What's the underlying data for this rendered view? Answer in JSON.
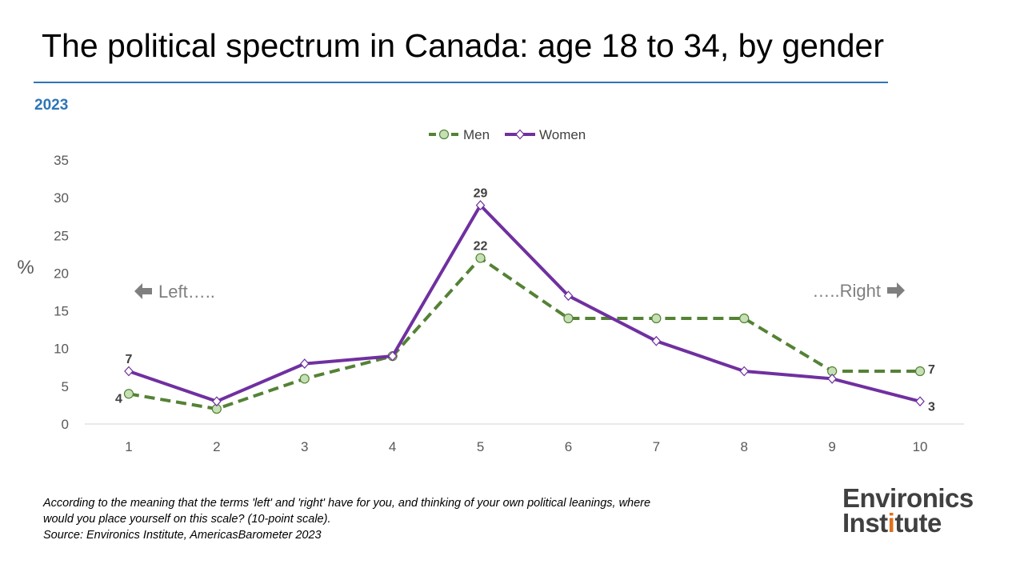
{
  "title": "The political spectrum in Canada: age 18 to 34, by gender",
  "subtitle": "2023",
  "chart_data": {
    "type": "line",
    "x": [
      1,
      2,
      3,
      4,
      5,
      6,
      7,
      8,
      9,
      10
    ],
    "series": [
      {
        "name": "Men",
        "values": [
          4,
          2,
          6,
          9,
          22,
          14,
          14,
          14,
          7,
          7
        ],
        "color": "#548235",
        "marker_fill": "#c5e0b4",
        "dash": true
      },
      {
        "name": "Women",
        "values": [
          7,
          3,
          8,
          9,
          29,
          17,
          11,
          7,
          6,
          3
        ],
        "color": "#7030a0",
        "marker_fill": "#ffffff",
        "dash": false
      }
    ],
    "data_labels": [
      {
        "series": "Women",
        "x": 1,
        "text": "7"
      },
      {
        "series": "Men",
        "x": 1,
        "text": "4"
      },
      {
        "series": "Women",
        "x": 5,
        "text": "29"
      },
      {
        "series": "Men",
        "x": 5,
        "text": "22"
      },
      {
        "series": "Men",
        "x": 10,
        "text": "7"
      },
      {
        "series": "Women",
        "x": 10,
        "text": "3"
      }
    ],
    "ylabel": "%",
    "ylim": [
      0,
      35
    ],
    "yticks": [
      0,
      5,
      10,
      15,
      20,
      25,
      30,
      35
    ],
    "grid": false,
    "legend": "top-center",
    "annotations": {
      "left": "Left…..",
      "right": "…..Right"
    }
  },
  "footnote": {
    "line1": "According to the meaning that the terms 'left' and 'right' have for you, and thinking of your own political leanings, where",
    "line2": "would you place yourself on this scale? (10-point scale).",
    "source": "Source: Environics Institute, AmericasBarometer 2023"
  },
  "logo": {
    "line1": "Environics",
    "line2_a": "Inst",
    "line2_accent": "i",
    "line2_b": "tute"
  }
}
